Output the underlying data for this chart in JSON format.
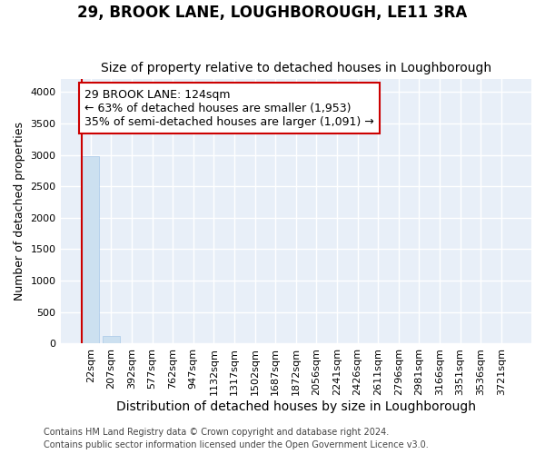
{
  "title": "29, BROOK LANE, LOUGHBOROUGH, LE11 3RA",
  "subtitle": "Size of property relative to detached houses in Loughborough",
  "xlabel": "Distribution of detached houses by size in Loughborough",
  "ylabel": "Number of detached properties",
  "footer_line1": "Contains HM Land Registry data © Crown copyright and database right 2024.",
  "footer_line2": "Contains public sector information licensed under the Open Government Licence v3.0.",
  "categories": [
    "22sqm",
    "207sqm",
    "392sqm",
    "577sqm",
    "762sqm",
    "947sqm",
    "1132sqm",
    "1317sqm",
    "1502sqm",
    "1687sqm",
    "1872sqm",
    "2056sqm",
    "2241sqm",
    "2426sqm",
    "2611sqm",
    "2796sqm",
    "2981sqm",
    "3166sqm",
    "3351sqm",
    "3536sqm",
    "3721sqm"
  ],
  "bar_values": [
    2980,
    120,
    8,
    4,
    2,
    1,
    1,
    1,
    1,
    1,
    0,
    0,
    0,
    0,
    0,
    0,
    0,
    0,
    0,
    0,
    0
  ],
  "bar_color": "#cce0f0",
  "bar_edgecolor": "#a8c8e8",
  "ylim": [
    0,
    4200
  ],
  "yticks": [
    0,
    500,
    1000,
    1500,
    2000,
    2500,
    3000,
    3500,
    4000
  ],
  "property_label": "29 BROOK LANE: 124sqm",
  "annotation_line1": "← 63% of detached houses are smaller (1,953)",
  "annotation_line2": "35% of semi-detached houses are larger (1,091) →",
  "annotation_color": "#cc0000",
  "vline_color": "#cc0000",
  "background_color": "#e8eff8",
  "grid_color": "#ffffff",
  "title_fontsize": 12,
  "subtitle_fontsize": 10,
  "xlabel_fontsize": 10,
  "ylabel_fontsize": 9,
  "tick_fontsize": 8,
  "annotation_fontsize": 9,
  "footer_fontsize": 7
}
